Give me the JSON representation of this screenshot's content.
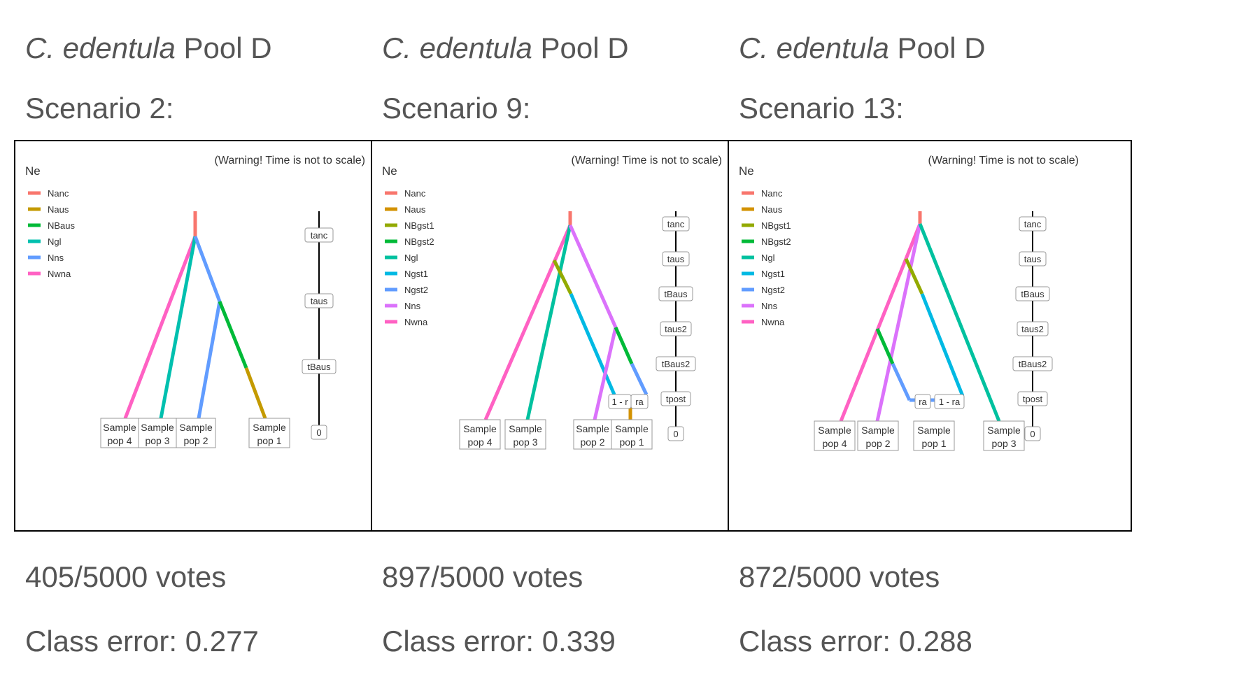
{
  "colors": {
    "Nanc": "#F8766D",
    "Naus": "#C49A00",
    "Naus_b": "#D39200",
    "NBaus": "#00BA38",
    "Ngl": "#00C0AF",
    "Nns": "#619CFF",
    "Nwna": "#FF61C3",
    "NBgst1": "#93AA00",
    "NBgst2": "#00BA38",
    "Ngl_b": "#00C19F",
    "Ngst1": "#00B9E3",
    "Ngst2": "#619CFF",
    "Nns_b": "#DB72FB"
  },
  "panels": [
    {
      "title_species": "C. edentula",
      "title_pool": " Pool D",
      "scenario": "Scenario 2:",
      "warning": "(Warning! Time is not to scale)",
      "legend_title": "Ne",
      "legend": [
        "Nanc",
        "Naus",
        "NBaus",
        "Ngl",
        "Nns",
        "Nwna"
      ],
      "time_labels": [
        "tanc",
        "taus",
        "tBaus",
        "0"
      ],
      "samples": [
        [
          "Sample",
          "pop 4"
        ],
        [
          "Sample",
          "pop 3"
        ],
        [
          "Sample",
          "pop 2"
        ],
        [
          "Sample",
          "pop 1"
        ]
      ],
      "admix": [],
      "votes": "405/5000 votes",
      "class_error": "Class error: 0.277"
    },
    {
      "title_species": "C. edentula",
      "title_pool": " Pool D",
      "scenario": "Scenario 9:",
      "warning": "(Warning! Time is not to scale)",
      "legend_title": "Ne",
      "legend": [
        "Nanc",
        "Naus",
        "NBgst1",
        "NBgst2",
        "Ngl",
        "Ngst1",
        "Ngst2",
        "Nns",
        "Nwna"
      ],
      "time_labels": [
        "tanc",
        "taus",
        "tBaus",
        "taus2",
        "tBaus2",
        "tpost",
        "0"
      ],
      "samples": [
        [
          "Sample",
          "pop 4"
        ],
        [
          "Sample",
          "pop 3"
        ],
        [
          "Sample",
          "pop 2"
        ],
        [
          "Sample",
          "pop 1"
        ]
      ],
      "admix": [
        "1 - r",
        "ra"
      ],
      "votes": "897/5000 votes",
      "class_error": "Class error: 0.339"
    },
    {
      "title_species": "C. edentula",
      "title_pool": " Pool D",
      "scenario": "Scenario 13:",
      "warning": "(Warning! Time is not to scale)",
      "legend_title": "Ne",
      "legend": [
        "Nanc",
        "Naus",
        "NBgst1",
        "NBgst2",
        "Ngl",
        "Ngst1",
        "Ngst2",
        "Nns",
        "Nwna"
      ],
      "time_labels": [
        "tanc",
        "taus",
        "tBaus",
        "taus2",
        "tBaus2",
        "tpost",
        "0"
      ],
      "samples": [
        [
          "Sample",
          "pop 4"
        ],
        [
          "Sample",
          "pop 2"
        ],
        [
          "Sample",
          "pop 1"
        ],
        [
          "Sample",
          "pop 3"
        ]
      ],
      "admix": [
        "ra",
        "1 - ra"
      ],
      "votes": "872/5000 votes",
      "class_error": "Class error: 0.288"
    }
  ]
}
